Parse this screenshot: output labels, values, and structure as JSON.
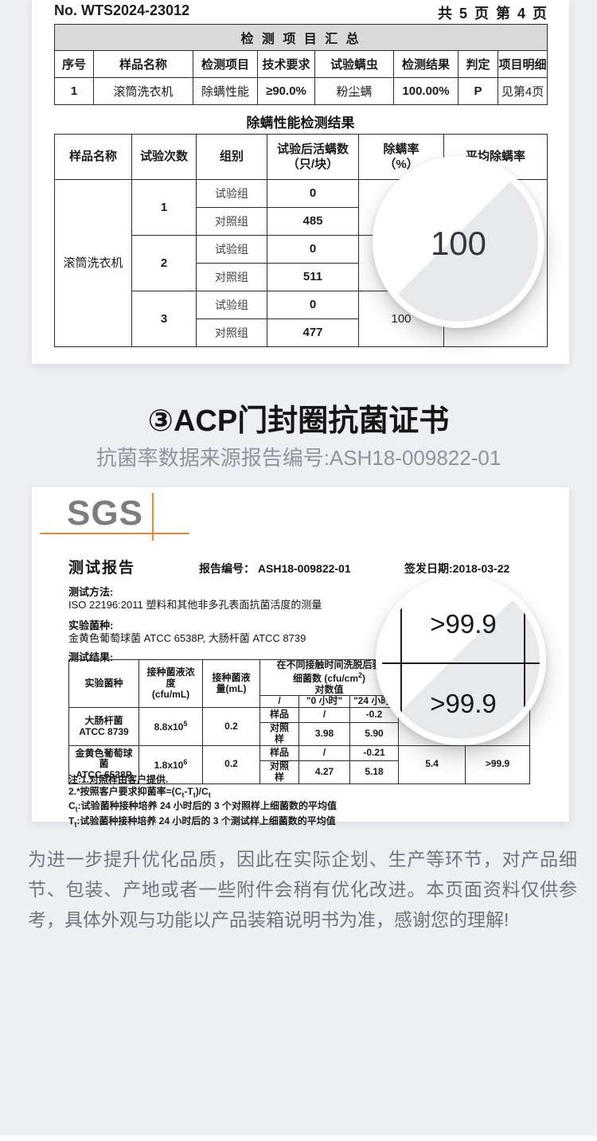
{
  "report1": {
    "doc_no": "No. WTS2024-23012",
    "page_info": "共 5 页 第 4 页",
    "summary": {
      "title": "检 测 项 目 汇 总",
      "headers": [
        "序号",
        "样品名称",
        "检测项目",
        "技术要求",
        "试验螨虫",
        "检测结果",
        "判定",
        "项目明细"
      ],
      "row": [
        "1",
        "滚筒洗衣机",
        "除螨性能",
        "≥90.0%",
        "粉尘螨",
        "100.00%",
        "P",
        "见第4页"
      ]
    },
    "result_title": "除螨性能检测结果",
    "result": {
      "h_sample": "样品名称",
      "h_trial": "试验次数",
      "h_group": "组别",
      "h_alive_html": "试验后活螨数<br>（只/块）",
      "h_rate_html": "除螨率<br>（%）",
      "h_avg": "平均除螨率",
      "sample": "滚筒洗衣机",
      "trials": [
        {
          "no": "1",
          "g1": "试验组",
          "v1": "0",
          "g2": "对照组",
          "v2": "485",
          "rate": "100"
        },
        {
          "no": "2",
          "g1": "试验组",
          "v1": "0",
          "g2": "对照组",
          "v2": "511",
          "rate": "100"
        },
        {
          "no": "3",
          "g1": "试验组",
          "v1": "0",
          "g2": "对照组",
          "v2": "477",
          "rate": "100"
        }
      ],
      "avg": ""
    },
    "magnifier_value": "100"
  },
  "cert_heading": {
    "title": "③ACP门封圈抗菌证书",
    "subtitle": "抗菌率数据来源报告编号:ASH18-009822-01"
  },
  "sgs": {
    "logo": "SGS",
    "report_title": "测试报告",
    "report_no": "报告编号： ASH18-009822-01",
    "issue_date": "签发日期:2018-03-22",
    "method_label": "测试方法:",
    "method": "ISO 22196:2011 塑料和其他非多孔表面抗菌活度的测量",
    "strain_label": "实验菌种:",
    "strains": "金黄色葡萄球菌 ATCC 6538P, 大肠杆菌 ATCC 8739",
    "result_label": "测试结果:",
    "table": {
      "h_strain": "实验菌种",
      "h_conc_html": "接种菌液浓<br>度<br>(cfu/mL)",
      "h_vol_html": "接种菌液<br>量(mL)",
      "h_group_html": "在不同接触时间洗脱后获<br>细菌数 (cfu/cm<sup>2</sup>)<br>对数值",
      "h_sub1": "/",
      "h_sub2": "\"0 小时\"",
      "h_sub3": "\"24 小时\"",
      "rows": [
        {
          "strain_html": "大肠杆菌<br>ATCC 8739",
          "conc_html": "8.8x10<sup>5</sup>",
          "vol": "0.2",
          "r1_label": "样品",
          "r1_t0": "/",
          "r1_t24": "-0.2",
          "r2_label_html": "对照<br>样",
          "r2_t0": "3.98",
          "r2_t24": "5.90",
          "activity": "",
          "rate": ""
        },
        {
          "strain_html": "金黄色葡萄球<br>菌<br>ATCC 6538P",
          "conc_html": "1.8x10<sup>6</sup>",
          "vol": "0.2",
          "r1_label": "样品",
          "r1_t0": "/",
          "r1_t24": "-0.21",
          "r2_label_html": "对照<br>样",
          "r2_t0": "4.27",
          "r2_t24": "5.18",
          "activity": "5.4",
          "rate": ">99.9"
        }
      ]
    },
    "notes_html": [
      "注:1.对照样由客户提供.",
      "2.*按照客户要求抑菌率=(C<sub>t</sub>-T<sub>t</sub>)/C<sub>t</sub>",
      "C<sub>t</sub>:试验菌种接种培养 24 小时后的 3 个对照样上细菌数的平均值",
      "T<sub>t</sub>:试验菌种接种培养 24 小时后的 3 个测试样上细菌数的平均值"
    ],
    "magnifier_top": ">99.9",
    "magnifier_bottom": ">99.9"
  },
  "disclaimer": "为进一步提升优化品质，因此在实际企划、生产等环节，对产品细节、包装、产地或者一些附件会稍有优化改进。本页面资料仅供参考，具体外观与功能以产品装箱说明书为准，感谢您的理解!",
  "colors": {
    "page_bg": "#edeff2",
    "table_header_bg": "#d9d9d9",
    "accent_orange": "#ef8632",
    "sgs_gray": "#7c7d81"
  }
}
